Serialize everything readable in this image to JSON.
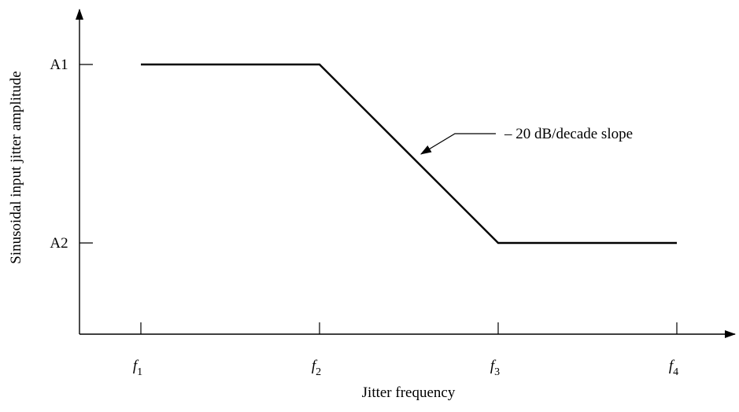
{
  "chart_data": {
    "type": "line",
    "title": "",
    "xlabel": "Jitter frequency",
    "ylabel": "Sinusoidal input jitter amplitude",
    "x_scale": "log",
    "y_scale": "log",
    "x_ticks": [
      {
        "pos": 1,
        "base": "f",
        "sub": "1"
      },
      {
        "pos": 2,
        "base": "f",
        "sub": "2"
      },
      {
        "pos": 3,
        "base": "f",
        "sub": "3"
      },
      {
        "pos": 4,
        "base": "f",
        "sub": "4"
      }
    ],
    "y_ticks": [
      {
        "pos": 2,
        "label": "A1"
      },
      {
        "pos": 1,
        "label": "A2"
      }
    ],
    "series": [
      {
        "points": [
          {
            "x": 1,
            "y": 2
          },
          {
            "x": 2,
            "y": 2
          },
          {
            "x": 3,
            "y": 1
          },
          {
            "x": 4,
            "y": 1
          }
        ]
      }
    ],
    "annotations": [
      {
        "text": "– 20 dB/decade slope",
        "target": {
          "x": 2.55,
          "y": 1.52
        }
      }
    ],
    "grid": false,
    "legend": "none"
  }
}
